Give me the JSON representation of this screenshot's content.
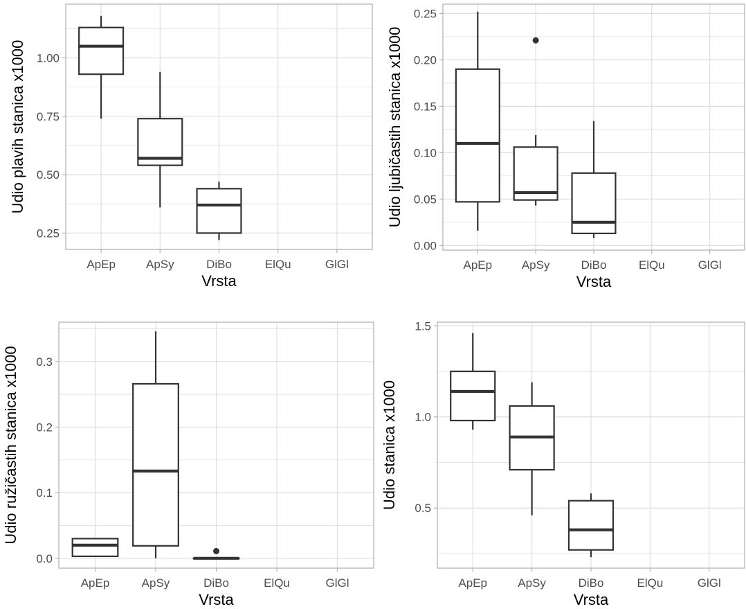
{
  "chart_data": [
    {
      "type": "boxplot",
      "title": "",
      "xlabel": "Vrsta",
      "ylabel": "Udio plavih stanica  x1000",
      "categories": [
        "ApEp",
        "ApSy",
        "DiBo",
        "ElQu",
        "GlGl"
      ],
      "yticks": [
        "0.25",
        "0.50",
        "0.75",
        "1.00"
      ],
      "ylim": [
        0.18,
        1.23
      ],
      "grid": true,
      "boxes": [
        {
          "category": "ApEp",
          "min": 0.74,
          "q1": 0.93,
          "median": 1.05,
          "q3": 1.13,
          "max": 1.18,
          "outliers": []
        },
        {
          "category": "ApSy",
          "min": 0.36,
          "q1": 0.54,
          "median": 0.57,
          "q3": 0.74,
          "max": 0.94,
          "outliers": []
        },
        {
          "category": "DiBo",
          "min": 0.22,
          "q1": 0.25,
          "median": 0.37,
          "q3": 0.44,
          "max": 0.47,
          "outliers": []
        }
      ]
    },
    {
      "type": "boxplot",
      "title": "",
      "xlabel": "Vrsta",
      "ylabel": "Udio ljubičastih stanica  x1000",
      "categories": [
        "ApEp",
        "ApSy",
        "DiBo",
        "ElQu",
        "GlGl"
      ],
      "yticks": [
        "0.00",
        "0.05",
        "0.10",
        "0.15",
        "0.20",
        "0.25"
      ],
      "ylim": [
        -0.005,
        0.26
      ],
      "grid": true,
      "boxes": [
        {
          "category": "ApEp",
          "min": 0.016,
          "q1": 0.047,
          "median": 0.11,
          "q3": 0.19,
          "max": 0.252,
          "outliers": []
        },
        {
          "category": "ApSy",
          "min": 0.043,
          "q1": 0.049,
          "median": 0.057,
          "q3": 0.106,
          "max": 0.119,
          "outliers": [
            0.221
          ]
        },
        {
          "category": "DiBo",
          "min": 0.008,
          "q1": 0.013,
          "median": 0.025,
          "q3": 0.078,
          "max": 0.134,
          "outliers": []
        }
      ]
    },
    {
      "type": "boxplot",
      "title": "",
      "xlabel": "Vrsta",
      "ylabel": "Udio ružičastih stanica  x1000",
      "categories": [
        "ApEp",
        "ApSy",
        "DiBo",
        "ElQu",
        "GlGl"
      ],
      "yticks": [
        "0.0",
        "0.1",
        "0.2",
        "0.3"
      ],
      "ylim": [
        -0.015,
        0.36
      ],
      "grid": true,
      "boxes": [
        {
          "category": "ApEp",
          "min": 0.002,
          "q1": 0.003,
          "median": 0.02,
          "q3": 0.03,
          "max": 0.03,
          "outliers": []
        },
        {
          "category": "ApSy",
          "min": 0.0,
          "q1": 0.019,
          "median": 0.133,
          "q3": 0.266,
          "max": 0.346,
          "outliers": []
        },
        {
          "category": "DiBo",
          "min": 0.0,
          "q1": 0.0,
          "median": 0.0,
          "q3": 0.0,
          "max": 0.0,
          "outliers": [
            0.011
          ]
        }
      ]
    },
    {
      "type": "boxplot",
      "title": "",
      "xlabel": "Vrsta",
      "ylabel": "Udio stanica  x1000",
      "categories": [
        "ApEp",
        "ApSy",
        "DiBo",
        "ElQu",
        "GlGl"
      ],
      "yticks": [
        "0.5",
        "1.0",
        "1.5"
      ],
      "ylim": [
        0.17,
        1.52
      ],
      "grid": true,
      "boxes": [
        {
          "category": "ApEp",
          "min": 0.93,
          "q1": 0.98,
          "median": 1.14,
          "q3": 1.25,
          "max": 1.46,
          "outliers": []
        },
        {
          "category": "ApSy",
          "min": 0.46,
          "q1": 0.71,
          "median": 0.89,
          "q3": 1.06,
          "max": 1.19,
          "outliers": []
        },
        {
          "category": "DiBo",
          "min": 0.23,
          "q1": 0.27,
          "median": 0.38,
          "q3": 0.54,
          "max": 0.58,
          "outliers": []
        }
      ]
    }
  ]
}
